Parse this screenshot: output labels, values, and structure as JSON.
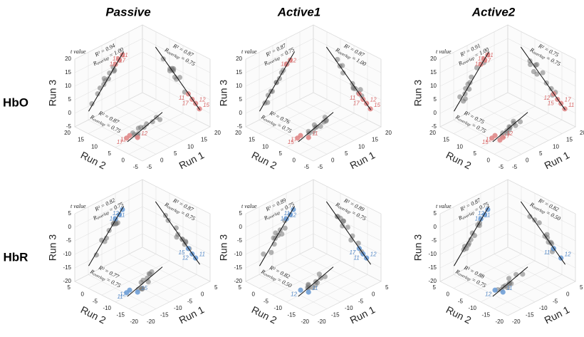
{
  "column_titles": [
    "Passive",
    "Active1",
    "Active2"
  ],
  "rows": [
    {
      "label": "HbO",
      "t_label": "t value",
      "run3_label": "Run 3",
      "run2_label": "Run 2",
      "run1_label": "Run 1",
      "run3_ticks": [
        -5,
        0,
        5,
        10,
        15,
        20
      ],
      "run2_ticks": [
        20,
        15,
        10,
        5,
        0,
        -5
      ],
      "run1_ticks": [
        -5,
        0,
        5,
        10,
        15,
        20
      ],
      "panels": [
        {
          "left": {
            "r2": "R² = 0.94",
            "overlap": [
              "R",
              "overlap",
              " = 1.00"
            ],
            "point_labels": [
              "12",
              "17",
              "15",
              "11"
            ]
          },
          "right": {
            "r2": "R² = 0.87",
            "overlap": [
              "R",
              "overlap",
              " = 0.75"
            ],
            "point_labels": [
              "11",
              "12",
              "17",
              "15"
            ]
          },
          "floor": {
            "r2": "R² = 0.87",
            "overlap": [
              "R",
              "overlap",
              " = 0.75"
            ],
            "point_labels": [
              "11",
              "12",
              "17"
            ]
          }
        },
        {
          "left": {
            "r2": "R² = 0.87",
            "overlap": [
              "R",
              "overlap",
              " = 0.75"
            ],
            "point_labels": [
              "11",
              "12"
            ]
          },
          "right": {
            "r2": "R² = 0.87",
            "overlap": [
              "R",
              "overlap",
              " = 1.00"
            ],
            "point_labels": [
              "11",
              "12",
              "17",
              "15"
            ]
          },
          "floor": {
            "r2": "R² = 0.76",
            "overlap": [
              "R",
              "overlap",
              " = 0.75"
            ],
            "point_labels": [
              "17",
              "11",
              "15"
            ]
          }
        },
        {
          "left": {
            "r2": "R² = 0.91",
            "overlap": [
              "R",
              "overlap",
              " = 1.00"
            ],
            "point_labels": [
              "12",
              "17",
              "15",
              "11"
            ]
          },
          "right": {
            "r2": "R² = 0.75",
            "overlap": [
              "R",
              "overlap",
              " = 0.75"
            ],
            "point_labels": [
              "12",
              "17",
              "15",
              "11"
            ]
          },
          "floor": {
            "r2": "R² = 0.75",
            "overlap": [
              "R",
              "overlap",
              " = 0.75"
            ],
            "point_labels": [
              "11",
              "12",
              "15",
              "17"
            ]
          }
        }
      ]
    },
    {
      "label": "HbR",
      "t_label": "t value",
      "run3_label": "Run 3",
      "run2_label": "Run 2",
      "run1_label": "Run 1",
      "run3_ticks": [
        -20,
        -15,
        -10,
        -5,
        0,
        5
      ],
      "run2_ticks": [
        5,
        0,
        -5,
        -10,
        -15,
        -20
      ],
      "run1_ticks": [
        -20,
        -15,
        -10,
        -5,
        0,
        5
      ],
      "panels": [
        {
          "left": {
            "r2": "R² = 0.82",
            "overlap": [
              "R",
              "overlap",
              " = 0.75"
            ],
            "point_labels": [
              "10",
              "11",
              "12"
            ]
          },
          "right": {
            "r2": "R² = 0.87",
            "overlap": [
              "R",
              "overlap",
              " = 0.75"
            ],
            "point_labels": [
              "15",
              "11",
              "12"
            ]
          },
          "floor": {
            "r2": "R² = 0.77",
            "overlap": [
              "R",
              "overlap",
              " = 0.75"
            ],
            "point_labels": [
              "12",
              "15",
              "11"
            ]
          }
        },
        {
          "left": {
            "r2": "R² = 0.89",
            "overlap": [
              "R",
              "overlap",
              " = 0.75"
            ],
            "point_labels": [
              "10",
              "12",
              "11"
            ]
          },
          "right": {
            "r2": "R² = 0.89",
            "overlap": [
              "R",
              "overlap",
              " = 0.75"
            ],
            "point_labels": [
              "17",
              "12",
              "11"
            ]
          },
          "floor": {
            "r2": "R² = 0.82",
            "overlap": [
              "R",
              "overlap",
              " = 0.50"
            ],
            "point_labels": [
              "12",
              "11"
            ]
          }
        },
        {
          "left": {
            "r2": "R² = 0.87",
            "overlap": [
              "R",
              "overlap",
              " = 0.75"
            ],
            "point_labels": [
              "15",
              "11",
              "12"
            ]
          },
          "right": {
            "r2": "R² = 0.82",
            "overlap": [
              "R",
              "overlap",
              " = 0.50"
            ],
            "point_labels": [
              "11",
              "12"
            ]
          },
          "floor": {
            "r2": "R² = 0.88",
            "overlap": [
              "R",
              "overlap",
              " = 0.75"
            ],
            "point_labels": [
              "12",
              "11"
            ]
          }
        }
      ]
    }
  ]
}
